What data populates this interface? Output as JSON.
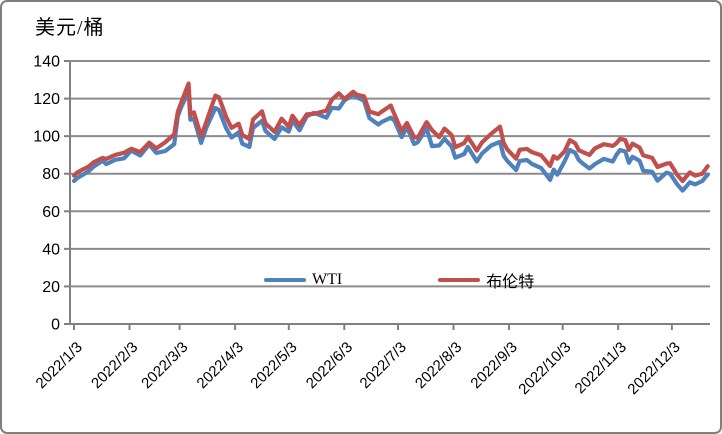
{
  "chart_title": "美元/桶",
  "colors": {
    "wti": "#4F81BD",
    "brent": "#C0504D",
    "grid": "#8C8C8C",
    "axis": "#808080",
    "frame": "#7F7F7F",
    "text": "#000000"
  },
  "legend": {
    "wti_label": "WTI",
    "brent_label": "布伦特"
  },
  "chart_data": {
    "type": "line",
    "title": "美元/桶",
    "xlabel": "",
    "ylabel": "美元/桶",
    "ylim": [
      0,
      140
    ],
    "y_ticks": [
      0,
      20,
      40,
      60,
      80,
      100,
      120,
      140
    ],
    "x_tick_labels": [
      "2022/1/3",
      "2022/2/3",
      "2022/3/3",
      "2022/4/3",
      "2022/5/3",
      "2022/6/3",
      "2022/7/3",
      "2022/8/3",
      "2022/9/3",
      "2022/10/3",
      "2022/11/3",
      "2022/12/3"
    ],
    "grid": true,
    "legend_position": "bottom-center-inside",
    "dates": [
      "1/3",
      "1/5",
      "1/7",
      "1/11",
      "1/14",
      "1/19",
      "1/21",
      "1/26",
      "1/31",
      "2/4",
      "2/9",
      "2/14",
      "2/18",
      "2/23",
      "2/28",
      "3/2",
      "3/4",
      "3/8",
      "3/9",
      "3/11",
      "3/15",
      "3/18",
      "3/23",
      "3/25",
      "3/29",
      "4/1",
      "4/5",
      "4/7",
      "4/11",
      "4/13",
      "4/18",
      "4/20",
      "4/25",
      "4/29",
      "5/3",
      "5/5",
      "5/9",
      "5/13",
      "5/17",
      "5/24",
      "5/27",
      "5/31",
      "6/3",
      "6/8",
      "6/10",
      "6/14",
      "6/17",
      "6/22",
      "6/24",
      "6/29",
      "7/1",
      "7/5",
      "7/8",
      "7/12",
      "7/14",
      "7/19",
      "7/22",
      "7/26",
      "7/29",
      "8/2",
      "8/4",
      "8/9",
      "8/11",
      "8/16",
      "8/19",
      "8/24",
      "8/29",
      "8/31",
      "9/2",
      "9/7",
      "9/9",
      "9/13",
      "9/16",
      "9/21",
      "9/26",
      "9/28",
      "9/30",
      "10/4",
      "10/7",
      "10/10",
      "10/12",
      "10/14",
      "10/18",
      "10/21",
      "10/26",
      "10/31",
      "11/2",
      "11/4",
      "11/7",
      "11/9",
      "11/11",
      "11/15",
      "11/17",
      "11/22",
      "11/25",
      "11/30",
      "12/2",
      "12/6",
      "12/9",
      "12/13",
      "12/16",
      "12/20",
      "12/23"
    ],
    "series": [
      {
        "name": "WTI",
        "color": "#4F81BD",
        "values": [
          76.1,
          77.8,
          78.9,
          81.2,
          83.8,
          86.9,
          85.1,
          87.4,
          88.2,
          92.3,
          89.7,
          95.5,
          91.1,
          92.1,
          95.7,
          110.6,
          115.7,
          123.7,
          108.7,
          109.3,
          96.4,
          104.7,
          115.0,
          113.9,
          104.2,
          99.3,
          102.0,
          96.0,
          94.3,
          104.3,
          108.2,
          102.8,
          98.5,
          104.7,
          102.4,
          108.3,
          103.1,
          110.5,
          112.4,
          109.8,
          115.1,
          114.7,
          118.9,
          122.1,
          120.7,
          118.9,
          109.6,
          106.2,
          107.6,
          109.8,
          108.4,
          99.5,
          104.8,
          95.8,
          96.8,
          104.2,
          94.7,
          95.0,
          98.6,
          94.4,
          88.5,
          90.5,
          94.3,
          86.5,
          90.8,
          95.0,
          97.0,
          89.6,
          86.9,
          81.9,
          86.8,
          87.3,
          85.1,
          83.0,
          76.7,
          82.2,
          79.5,
          86.5,
          92.6,
          91.1,
          87.3,
          85.6,
          82.8,
          85.1,
          87.9,
          86.5,
          90.0,
          92.6,
          91.8,
          85.8,
          89.0,
          86.9,
          81.6,
          81.0,
          76.3,
          80.6,
          80.0,
          74.3,
          71.0,
          75.4,
          74.3,
          76.1,
          79.6
        ]
      },
      {
        "name": "布伦特",
        "color": "#C0504D",
        "values": [
          79.0,
          80.8,
          81.8,
          83.7,
          86.1,
          88.4,
          87.9,
          90.0,
          91.2,
          93.3,
          91.5,
          96.5,
          93.5,
          96.8,
          101.0,
          112.9,
          118.1,
          128.0,
          111.1,
          112.7,
          99.9,
          107.9,
          121.6,
          120.7,
          110.2,
          104.4,
          106.6,
          100.6,
          98.5,
          108.8,
          113.2,
          106.8,
          102.3,
          109.3,
          105.0,
          110.9,
          105.9,
          111.6,
          111.9,
          113.6,
          119.4,
          122.8,
          119.7,
          123.6,
          122.0,
          121.2,
          113.1,
          111.7,
          113.1,
          116.3,
          111.6,
          102.8,
          107.0,
          99.5,
          99.1,
          107.4,
          103.2,
          99.5,
          104.0,
          100.5,
          94.1,
          96.3,
          99.6,
          92.3,
          96.7,
          101.2,
          105.1,
          96.5,
          93.0,
          88.0,
          92.8,
          93.2,
          91.4,
          89.8,
          84.1,
          89.3,
          88.0,
          91.8,
          97.9,
          96.2,
          92.5,
          91.6,
          90.0,
          93.5,
          95.7,
          94.8,
          96.2,
          98.6,
          97.9,
          92.7,
          96.0,
          93.9,
          89.8,
          88.4,
          83.6,
          85.4,
          85.6,
          79.4,
          76.1,
          80.7,
          79.0,
          80.0,
          84.0
        ]
      }
    ]
  }
}
